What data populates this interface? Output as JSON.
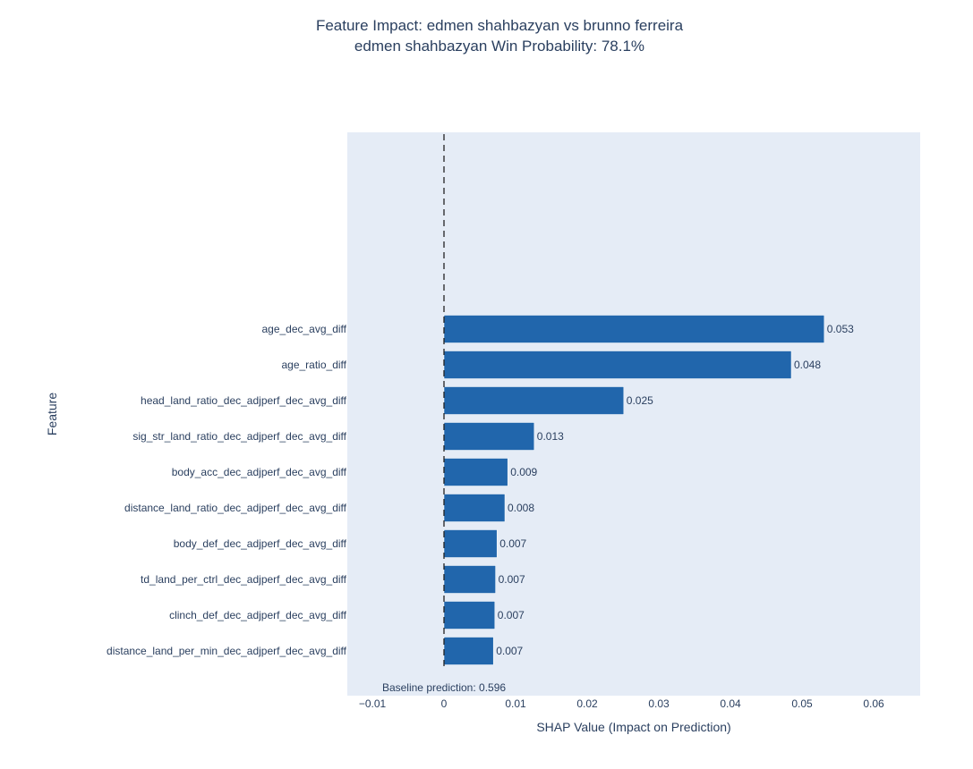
{
  "chart_data": {
    "type": "bar",
    "orientation": "horizontal",
    "title": "Feature Impact: edmen shahbazyan vs brunno ferreira",
    "subtitle": "edmen shahbazyan Win Probability: 78.1%",
    "xlabel": "SHAP Value (Impact on Prediction)",
    "ylabel": "Feature",
    "xlim": [
      -0.0135,
      0.0665
    ],
    "x_ticks": [
      -0.01,
      0,
      0.01,
      0.02,
      0.03,
      0.04,
      0.05,
      0.06
    ],
    "x_tick_labels": [
      "−0.01",
      "0",
      "0.01",
      "0.02",
      "0.03",
      "0.04",
      "0.05",
      "0.06"
    ],
    "grid": false,
    "baseline_line_x": 0,
    "annotation": "Baseline prediction: 0.596",
    "bar_color": "#2166ac",
    "plot_bg": "#e5ecf6",
    "categories": [
      "age_dec_avg_diff",
      "age_ratio_diff",
      "head_land_ratio_dec_adjperf_dec_avg_diff",
      "sig_str_land_ratio_dec_adjperf_dec_avg_diff",
      "body_acc_dec_adjperf_dec_avg_diff",
      "distance_land_ratio_dec_adjperf_dec_avg_diff",
      "body_def_dec_adjperf_dec_avg_diff",
      "td_land_per_ctrl_dec_adjperf_dec_avg_diff",
      "clinch_def_dec_adjperf_dec_avg_diff",
      "distance_land_per_min_dec_adjperf_dec_avg_diff"
    ],
    "values": [
      0.0531,
      0.0485,
      0.0251,
      0.0126,
      0.0089,
      0.0085,
      0.0074,
      0.0072,
      0.0071,
      0.0069
    ],
    "value_labels": [
      "0.053",
      "0.048",
      "0.025",
      "0.013",
      "0.009",
      "0.008",
      "0.007",
      "0.007",
      "0.007",
      "0.007"
    ]
  }
}
